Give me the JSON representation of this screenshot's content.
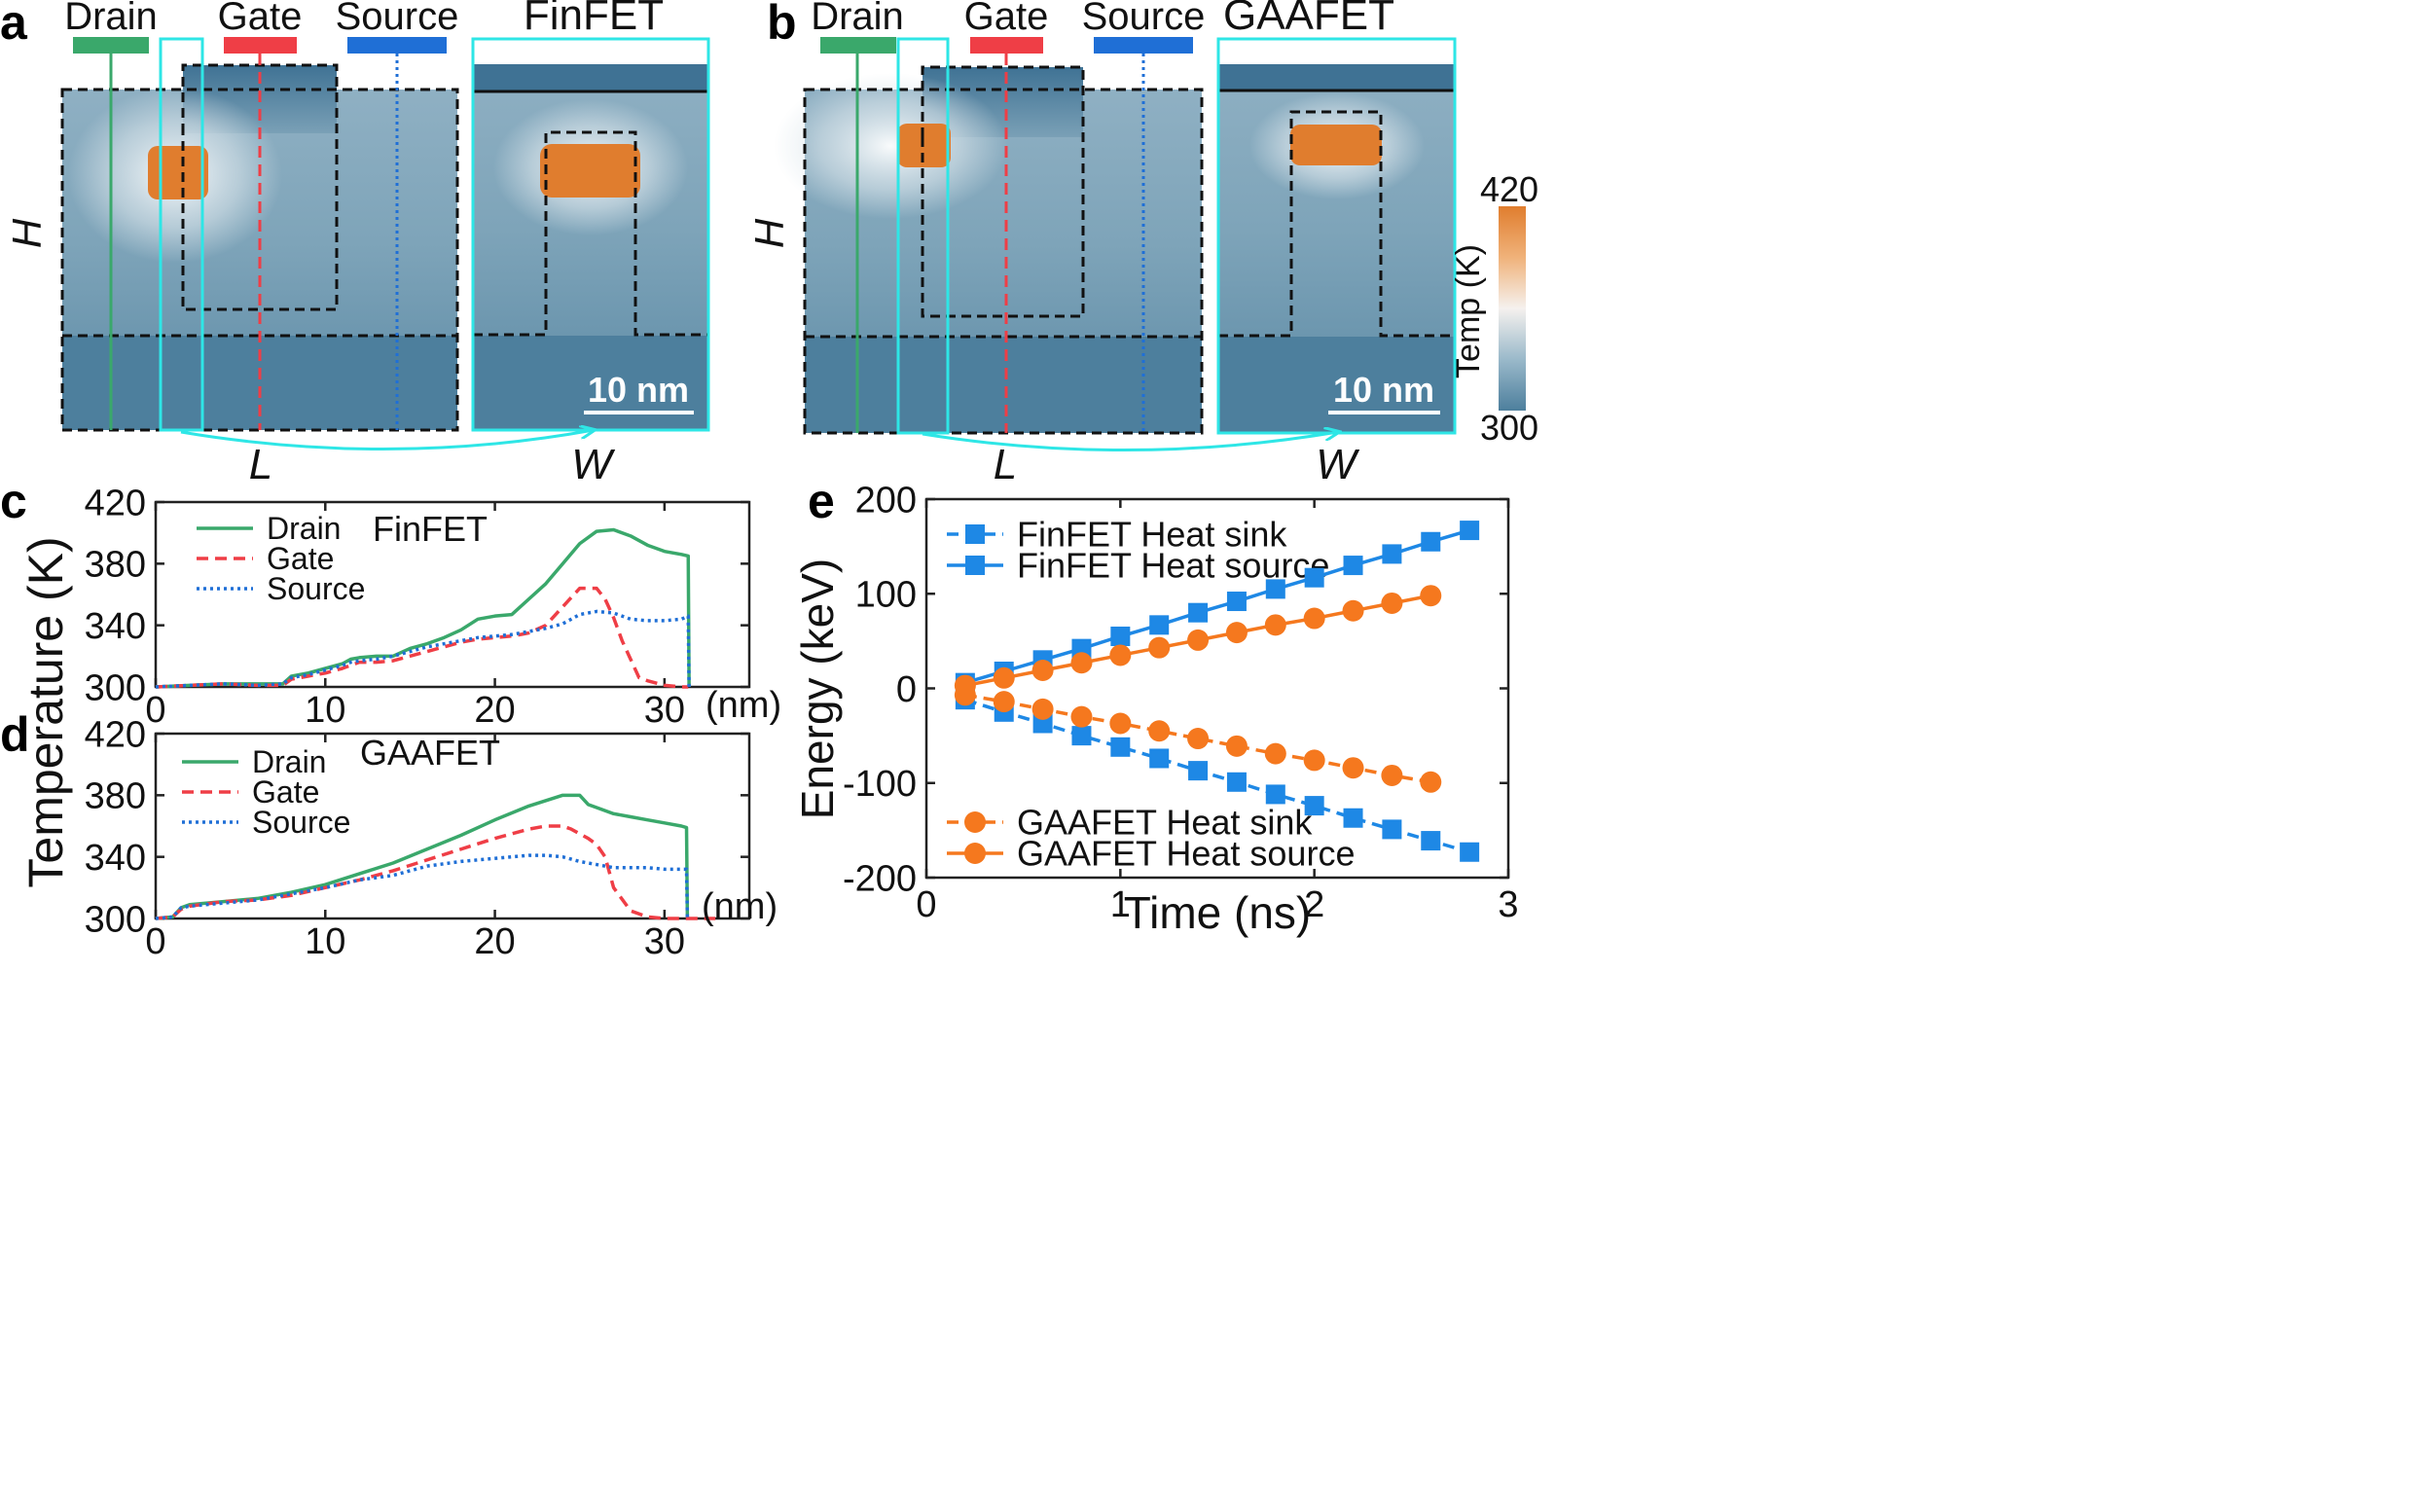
{
  "colors": {
    "drain": "#3aa86b",
    "gate": "#ef3e46",
    "source": "#1f6fd6",
    "heat": "#e07d2e",
    "blue": "#1e88e5",
    "orange": "#f5781e",
    "map_bg": "#4d7f9d",
    "map_light": "#8fb0c3",
    "cyan": "#2ee6e6",
    "dark": "#333333"
  },
  "panel_a": {
    "letter": "a",
    "title": "FinFET",
    "legend": {
      "drain": "Drain",
      "gate": "Gate",
      "source": "Source"
    },
    "axis": {
      "h": "H",
      "l": "L",
      "w": "W"
    },
    "scale_bar": "10 nm"
  },
  "panel_b": {
    "letter": "b",
    "title": "GAAFET",
    "legend": {
      "drain": "Drain",
      "gate": "Gate",
      "source": "Source"
    },
    "axis": {
      "h": "H",
      "l": "L",
      "w": "W"
    },
    "scale_bar": "10 nm"
  },
  "colorbar": {
    "label": "Temp (K)",
    "max": "420",
    "min": "300"
  },
  "shared": {
    "ylabel": "Temperature (K)",
    "xunit": "(nm)"
  },
  "chart_data": [
    {
      "id": "c",
      "letter": "c",
      "type": "line",
      "title": "FinFET",
      "xlabel": "(nm)",
      "ylabel": "Temperature (K)",
      "xlim": [
        0,
        35
      ],
      "ylim": [
        300,
        420
      ],
      "xticks": [
        0,
        10,
        20,
        30
      ],
      "yticks": [
        300,
        340,
        380,
        420
      ],
      "legend_position": "top-left",
      "series": [
        {
          "name": "Drain",
          "style": "solid",
          "color": "#3aa86b",
          "x": [
            0,
            2,
            4,
            6,
            7.5,
            8,
            9,
            10,
            11,
            11.5,
            12,
            13,
            14,
            15,
            16,
            17,
            18,
            19,
            20,
            21,
            22,
            23,
            24,
            25,
            26,
            27,
            28,
            29,
            30,
            31,
            31.4,
            31.45
          ],
          "y": [
            300,
            301,
            302,
            302,
            302,
            307,
            309,
            312,
            315,
            318,
            319,
            320,
            320,
            325,
            328,
            332,
            337,
            344,
            346,
            347,
            357,
            367,
            380,
            393,
            401,
            402,
            398,
            392,
            388,
            386,
            385,
            300
          ]
        },
        {
          "name": "Gate",
          "style": "dashed",
          "color": "#ef3e46",
          "x": [
            0,
            2,
            4,
            6,
            7.5,
            8,
            9,
            10,
            11,
            11.5,
            12,
            13,
            14,
            15,
            16,
            17,
            18,
            19,
            20,
            21,
            22,
            23,
            24,
            25,
            26,
            26.5,
            27,
            27.5,
            28,
            28.5,
            29,
            30,
            31,
            31.4
          ],
          "y": [
            300,
            301,
            302,
            301,
            301,
            305,
            307,
            309,
            312,
            314,
            316,
            316,
            317,
            320,
            323,
            326,
            329,
            331,
            332,
            333,
            335,
            340,
            352,
            364,
            364,
            357,
            345,
            330,
            318,
            306,
            304,
            301,
            300,
            300
          ]
        },
        {
          "name": "Source",
          "style": "dotted",
          "color": "#1f6fd6",
          "x": [
            0,
            2,
            4,
            6,
            7.5,
            8,
            9,
            10,
            11,
            11.5,
            12,
            13,
            14,
            15,
            16,
            17,
            18,
            19,
            20,
            21,
            22,
            23,
            24,
            25,
            26,
            27,
            28,
            29,
            30,
            31,
            31.4,
            31.45
          ],
          "y": [
            300,
            301,
            302,
            301,
            302,
            306,
            308,
            311,
            314,
            316,
            317,
            318,
            320,
            323,
            326,
            328,
            330,
            332,
            333,
            334,
            336,
            338,
            341,
            347,
            349,
            348,
            344,
            343,
            343,
            344,
            346,
            300
          ]
        }
      ]
    },
    {
      "id": "d",
      "letter": "d",
      "type": "line",
      "title": "GAAFET",
      "xlabel": "(nm)",
      "ylabel": "Temperature (K)",
      "xlim": [
        0,
        35
      ],
      "ylim": [
        300,
        420
      ],
      "xticks": [
        0,
        10,
        20,
        30
      ],
      "yticks": [
        300,
        340,
        380,
        420
      ],
      "legend_position": "top-left",
      "series": [
        {
          "name": "Drain",
          "style": "solid",
          "color": "#3aa86b",
          "x": [
            0,
            1,
            1.5,
            2,
            4,
            6,
            8,
            10,
            12,
            14,
            16,
            18,
            20,
            22,
            24,
            25,
            25.5,
            26,
            27,
            28,
            29,
            30,
            31,
            31.3,
            31.35
          ],
          "y": [
            300,
            301,
            307,
            309,
            311,
            313,
            317,
            322,
            329,
            336,
            345,
            354,
            364,
            373,
            380,
            380,
            374,
            372,
            368,
            366,
            364,
            362,
            360,
            359,
            300
          ]
        },
        {
          "name": "Gate",
          "style": "dashed",
          "color": "#ef3e46",
          "x": [
            0,
            1,
            1.5,
            2,
            4,
            6,
            8,
            10,
            12,
            14,
            16,
            18,
            20,
            22,
            23,
            24,
            24.5,
            25,
            25.5,
            26,
            26.5,
            27,
            28,
            29,
            30,
            31,
            33
          ],
          "y": [
            300,
            301,
            306,
            308,
            311,
            312,
            315,
            320,
            325,
            331,
            338,
            345,
            352,
            358,
            360,
            360,
            358,
            355,
            352,
            348,
            340,
            320,
            305,
            301,
            300,
            300,
            300
          ]
        },
        {
          "name": "Source",
          "style": "dotted",
          "color": "#1f6fd6",
          "x": [
            0,
            1,
            1.5,
            2,
            4,
            6,
            8,
            10,
            12,
            14,
            16,
            18,
            20,
            22,
            23,
            24,
            25,
            26,
            27,
            28,
            29,
            30,
            31,
            31.3,
            31.35
          ],
          "y": [
            300,
            301,
            307,
            308,
            310,
            312,
            316,
            320,
            325,
            328,
            334,
            337,
            339,
            341,
            341,
            340,
            337,
            335,
            333,
            333,
            333,
            332,
            332,
            332,
            300
          ]
        }
      ]
    },
    {
      "id": "e",
      "letter": "e",
      "type": "line",
      "xlabel": "Time (ns)",
      "ylabel": "Energy (keV)",
      "xlim": [
        0,
        3
      ],
      "ylim": [
        -200,
        200
      ],
      "xticks": [
        0,
        1,
        2,
        3
      ],
      "yticks": [
        -200,
        -100,
        0,
        100,
        200
      ],
      "series": [
        {
          "name": "FinFET Heat sink",
          "color": "#1e88e5",
          "style": "dashed",
          "marker": "square",
          "x": [
            0.2,
            0.4,
            0.6,
            0.8,
            1.0,
            1.2,
            1.4,
            1.6,
            1.8,
            2.0,
            2.2,
            2.4,
            2.6,
            2.8
          ],
          "y": [
            -12,
            -25,
            -37,
            -50,
            -62,
            -74,
            -87,
            -99,
            -112,
            -124,
            -137,
            -149,
            -161,
            -173
          ]
        },
        {
          "name": "FinFET Heat source",
          "color": "#1e88e5",
          "style": "solid",
          "marker": "square",
          "x": [
            0.2,
            0.4,
            0.6,
            0.8,
            1.0,
            1.2,
            1.4,
            1.6,
            1.8,
            2.0,
            2.2,
            2.4,
            2.6,
            2.8
          ],
          "y": [
            6,
            18,
            30,
            42,
            55,
            67,
            80,
            92,
            105,
            117,
            130,
            142,
            155,
            167
          ]
        },
        {
          "name": "GAAFET Heat sink",
          "color": "#f5781e",
          "style": "dashed",
          "marker": "circle",
          "x": [
            0.2,
            0.4,
            0.6,
            0.8,
            1.0,
            1.2,
            1.4,
            1.6,
            1.8,
            2.0,
            2.2,
            2.4,
            2.6
          ],
          "y": [
            -7,
            -14,
            -22,
            -30,
            -37,
            -45,
            -53,
            -61,
            -69,
            -76,
            -84,
            -92,
            -99
          ]
        },
        {
          "name": "GAAFET Heat source",
          "color": "#f5781e",
          "style": "solid",
          "marker": "circle",
          "x": [
            0.2,
            0.4,
            0.6,
            0.8,
            1.0,
            1.2,
            1.4,
            1.6,
            1.8,
            2.0,
            2.2,
            2.4,
            2.6
          ],
          "y": [
            3,
            11,
            19,
            27,
            35,
            43,
            51,
            59,
            67,
            74,
            82,
            90,
            98
          ]
        }
      ]
    }
  ]
}
